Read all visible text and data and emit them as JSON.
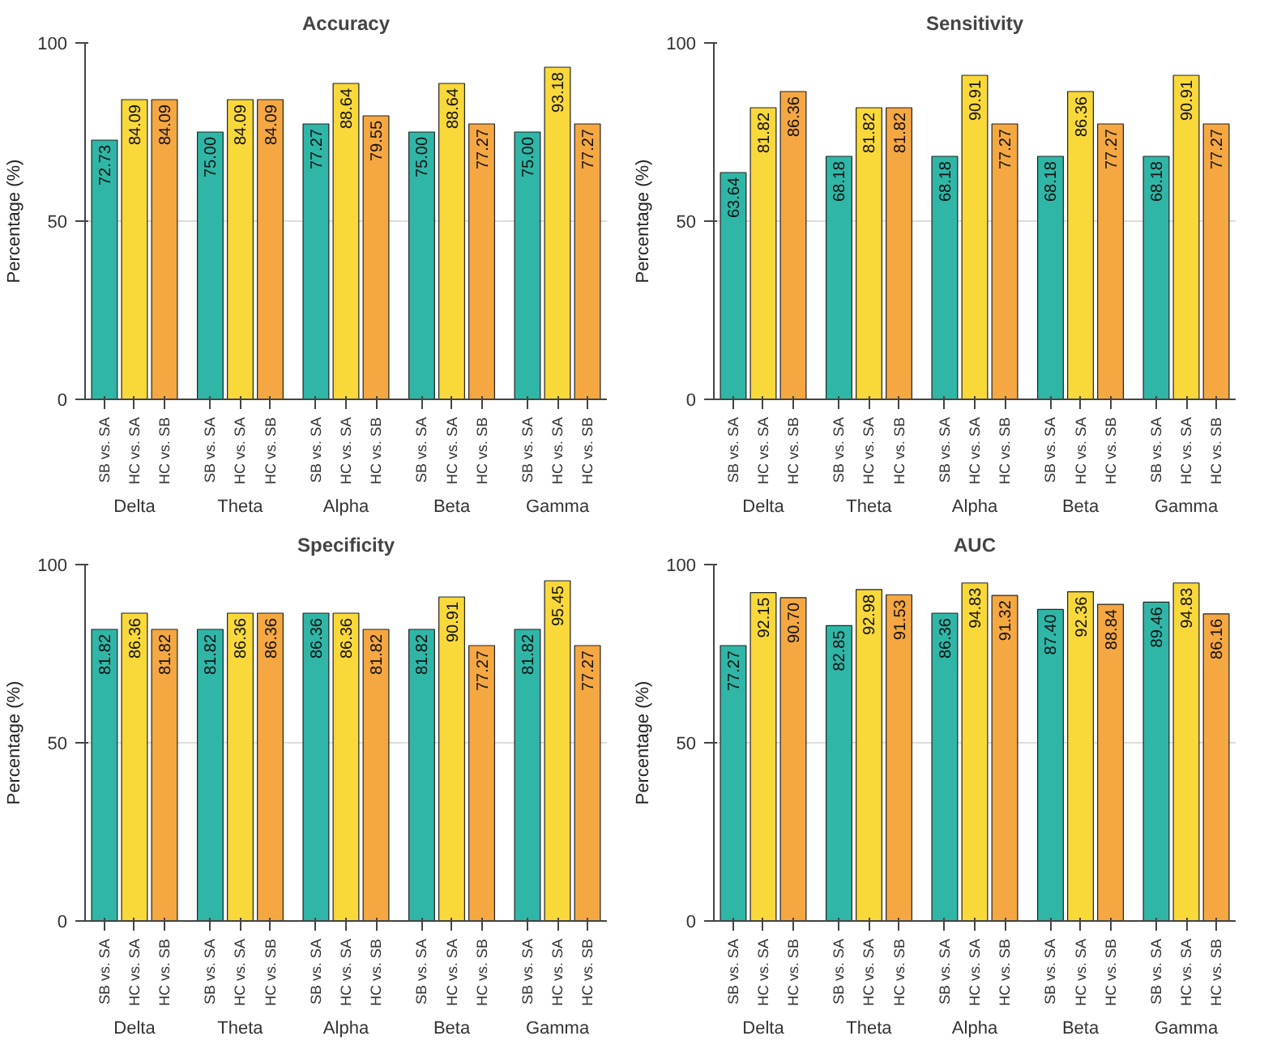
{
  "chart_data": [
    {
      "type": "bar",
      "title": "Accuracy",
      "ylabel": "Percentage (%)",
      "categories": [
        "Delta",
        "Theta",
        "Alpha",
        "Beta",
        "Gamma"
      ],
      "series": [
        {
          "name": "SB vs. SA",
          "color": "#2fb6a6",
          "values": [
            72.73,
            75.0,
            77.27,
            75.0,
            75.0
          ],
          "value_labels": [
            "72.73",
            "75.00",
            "77.27",
            "75.00",
            "75.00"
          ]
        },
        {
          "name": "HC vs. SA",
          "color": "#f9d83a",
          "values": [
            84.09,
            84.09,
            88.64,
            88.64,
            93.18
          ],
          "value_labels": [
            "84.09",
            "84.09",
            "88.64",
            "88.64",
            "93.18"
          ]
        },
        {
          "name": "HC vs. SB",
          "color": "#f5a742",
          "values": [
            84.09,
            84.09,
            79.55,
            77.27,
            77.27
          ],
          "value_labels": [
            "84.09",
            "84.09",
            "79.55",
            "77.27",
            "77.27"
          ]
        }
      ],
      "ylim": [
        0,
        100
      ],
      "yticks": [
        0,
        50,
        100
      ],
      "grid": "y"
    },
    {
      "type": "bar",
      "title": "Sensitivity",
      "ylabel": "Percentage (%)",
      "categories": [
        "Delta",
        "Theta",
        "Alpha",
        "Beta",
        "Gamma"
      ],
      "series": [
        {
          "name": "SB vs. SA",
          "color": "#2fb6a6",
          "values": [
            63.64,
            68.18,
            68.18,
            68.18,
            68.18
          ],
          "value_labels": [
            "63.64",
            "68.18",
            "68.18",
            "68.18",
            "68.18"
          ]
        },
        {
          "name": "HC vs. SA",
          "color": "#f9d83a",
          "values": [
            81.82,
            81.82,
            90.91,
            86.36,
            90.91
          ],
          "value_labels": [
            "81.82",
            "81.82",
            "90.91",
            "86.36",
            "90.91"
          ]
        },
        {
          "name": "HC vs. SB",
          "color": "#f5a742",
          "values": [
            86.36,
            81.82,
            77.27,
            77.27,
            77.27
          ],
          "value_labels": [
            "86.36",
            "81.82",
            "77.27",
            "77.27",
            "77.27"
          ]
        }
      ],
      "ylim": [
        0,
        100
      ],
      "yticks": [
        0,
        50,
        100
      ],
      "grid": "y"
    },
    {
      "type": "bar",
      "title": "Specificity",
      "ylabel": "Percentage (%)",
      "categories": [
        "Delta",
        "Theta",
        "Alpha",
        "Beta",
        "Gamma"
      ],
      "series": [
        {
          "name": "SB vs. SA",
          "color": "#2fb6a6",
          "values": [
            81.82,
            81.82,
            86.36,
            81.82,
            81.82
          ],
          "value_labels": [
            "81.82",
            "81.82",
            "86.36",
            "81.82",
            "81.82"
          ]
        },
        {
          "name": "HC vs. SA",
          "color": "#f9d83a",
          "values": [
            86.36,
            86.36,
            86.36,
            90.91,
            95.45
          ],
          "value_labels": [
            "86.36",
            "86.36",
            "86.36",
            "90.91",
            "95.45"
          ]
        },
        {
          "name": "HC vs. SB",
          "color": "#f5a742",
          "values": [
            81.82,
            86.36,
            81.82,
            77.27,
            77.27
          ],
          "value_labels": [
            "81.82",
            "86.36",
            "81.82",
            "77.27",
            "77.27"
          ]
        }
      ],
      "ylim": [
        0,
        100
      ],
      "yticks": [
        0,
        50,
        100
      ],
      "grid": "y"
    },
    {
      "type": "bar",
      "title": "AUC",
      "ylabel": "Percentage (%)",
      "categories": [
        "Delta",
        "Theta",
        "Alpha",
        "Beta",
        "Gamma"
      ],
      "series": [
        {
          "name": "SB vs. SA",
          "color": "#2fb6a6",
          "values": [
            77.27,
            82.85,
            86.36,
            87.4,
            89.46
          ],
          "value_labels": [
            "77.27",
            "82.85",
            "86.36",
            "87.40",
            "89.46"
          ]
        },
        {
          "name": "HC vs. SA",
          "color": "#f9d83a",
          "values": [
            92.15,
            92.98,
            94.83,
            92.36,
            94.83
          ],
          "value_labels": [
            "92.15",
            "92.98",
            "94.83",
            "92.36",
            "94.83"
          ]
        },
        {
          "name": "HC vs. SB",
          "color": "#f5a742",
          "values": [
            90.7,
            91.53,
            91.32,
            88.84,
            86.16
          ],
          "value_labels": [
            "90.70",
            "91.53",
            "91.32",
            "88.84",
            "86.16"
          ]
        }
      ],
      "ylim": [
        0,
        100
      ],
      "yticks": [
        0,
        50,
        100
      ],
      "grid": "y"
    }
  ]
}
